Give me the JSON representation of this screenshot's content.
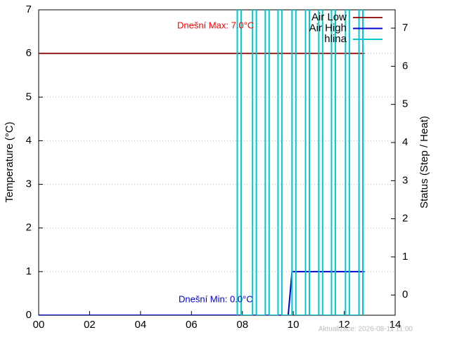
{
  "chart_data": {
    "type": "line",
    "y_label": "Temperature (°C)",
    "y2_label": "Status (Step / Heat)",
    "xlim": [
      0,
      14
    ],
    "xticks": [
      {
        "value": 0,
        "label": "00"
      },
      {
        "value": 2,
        "label": "02"
      },
      {
        "value": 4,
        "label": "04"
      },
      {
        "value": 6,
        "label": "06"
      },
      {
        "value": 8,
        "label": "08"
      },
      {
        "value": 10,
        "label": "10"
      },
      {
        "value": 12,
        "label": "12"
      },
      {
        "value": 14,
        "label": "14"
      }
    ],
    "ylim": [
      0,
      7
    ],
    "yticks": [
      0,
      1,
      2,
      3,
      4,
      5,
      6,
      7
    ],
    "y2lim": [
      -0.53,
      7.48
    ],
    "y2ticks": [
      0,
      1,
      2,
      3,
      4,
      5,
      6,
      7
    ],
    "grid": true,
    "series": [
      {
        "name": "Air Low",
        "color": "#9b1c1c",
        "x": [
          0,
          12.8
        ],
        "values": [
          6,
          6
        ]
      },
      {
        "name": "Air High",
        "color": "#0000cc",
        "x": [
          0,
          9.8,
          9.95,
          12.8
        ],
        "values": [
          0,
          0,
          1,
          1
        ]
      },
      {
        "name": "hlina",
        "color": "#00c8d0",
        "x": [
          7.8,
          7.8,
          7.95,
          7.95,
          8.4,
          8.4,
          8.55,
          8.55,
          8.9,
          8.9,
          9.05,
          9.05,
          9.4,
          9.4,
          9.55,
          9.55,
          9.95,
          9.95,
          10.1,
          10.1,
          10.48,
          10.48,
          10.63,
          10.63,
          11.0,
          11.0,
          11.15,
          11.15,
          11.5,
          11.5,
          11.65,
          11.65,
          12.05,
          12.05,
          12.2,
          12.2,
          12.58,
          12.58,
          12.73,
          12.73
        ],
        "values": [
          0,
          7,
          7,
          0,
          0,
          7,
          7,
          0,
          0,
          7,
          7,
          0,
          0,
          7,
          7,
          0,
          0,
          7,
          7,
          0,
          0,
          7,
          7,
          0,
          0,
          7,
          7,
          0,
          0,
          7,
          7,
          0,
          0,
          7,
          7,
          0,
          0,
          7,
          7,
          0
        ]
      }
    ],
    "annotations": [
      {
        "text": "Dnešní Max: 7.0°C",
        "color": "#ff0000"
      },
      {
        "text": "Dnešní Min: 0.0°C",
        "color": "#0000cc"
      },
      {
        "text": "Aktualizace: 2026-08-11 11:00",
        "color": "#bbbbbb"
      }
    ]
  }
}
